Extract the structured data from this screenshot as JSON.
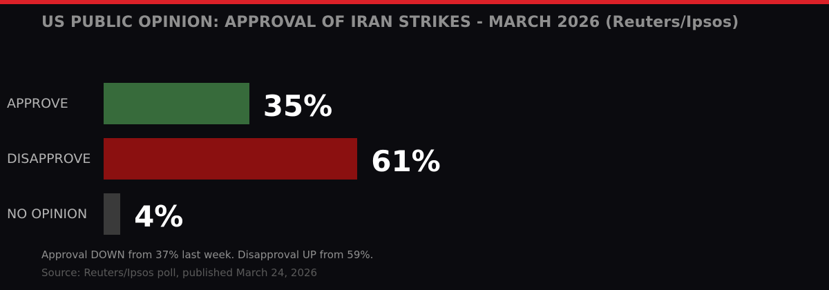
{
  "title": "US PUBLIC OPINION: APPROVAL OF IRAN STRIKES - MARCH 2026 (Reuters/Ipsos)",
  "note": "Approval DOWN from 37% last week. Disapproval UP from 59%.",
  "source": "Source: Reuters/Ipsos poll, published March 24, 2026",
  "colors": {
    "accent_bar": "#dc2128",
    "approve": "#376b3b",
    "disapprove": "#8b1010",
    "no_opinion": "#3a3a3a"
  },
  "chart_data": {
    "type": "bar",
    "orientation": "horizontal",
    "title": "US PUBLIC OPINION: APPROVAL OF IRAN STRIKES - MARCH 2026 (Reuters/Ipsos)",
    "categories": [
      "APPROVE",
      "DISAPPROVE",
      "NO OPINION"
    ],
    "values": [
      35,
      61,
      4
    ],
    "value_labels": [
      "35%",
      "61%",
      "4%"
    ],
    "bar_colors": [
      "#376b3b",
      "#8b1010",
      "#3a3a3a"
    ],
    "unit": "%",
    "xlim": [
      0,
      100
    ],
    "grid": false,
    "legend": "none"
  }
}
